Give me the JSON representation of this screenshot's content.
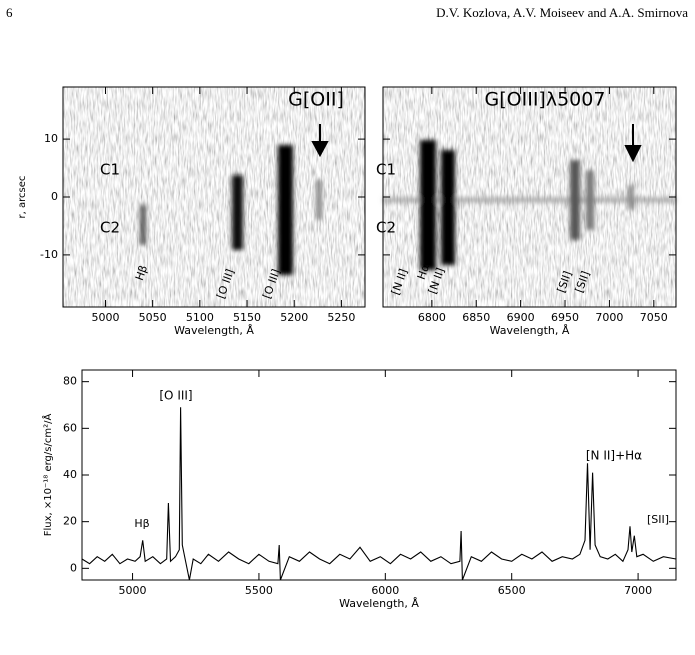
{
  "header": {
    "page_number": "6",
    "authors": "D.V. Kozlova, A.V. Moiseev and A.A. Smirnova"
  },
  "chart_data": [
    {
      "type": "image2d",
      "xlabel": "Wavelength, Å",
      "ylabel": "r, arcsec",
      "xlim": [
        4955,
        5275
      ],
      "xticks": [
        5000,
        5050,
        5100,
        5150,
        5200,
        5250
      ],
      "ylim": [
        -19,
        19
      ],
      "yticks": [
        -10,
        0,
        10
      ],
      "labels": [
        "C1",
        "C2",
        "G[OII]",
        "Hβ",
        "[O III]",
        "[O III]"
      ]
    },
    {
      "type": "image2d",
      "xlabel": "Wavelength, Å",
      "xlim": [
        6745,
        7075
      ],
      "xticks": [
        6800,
        6850,
        6900,
        6950,
        7000,
        7050
      ],
      "ylim": [
        -19,
        19
      ],
      "yticks": [
        -10,
        0,
        10
      ],
      "labels": [
        "C1",
        "C2",
        "G[OIII]λ5007",
        "[N II]",
        "Hα",
        "[N II]",
        "[SII]",
        "[SII]"
      ]
    },
    {
      "type": "line",
      "xlabel": "Wavelength, Å",
      "ylabel": "Flux, ×10⁻¹⁸ erg/s/cm²/Å",
      "color": "#000000",
      "xlim": [
        4800,
        7150
      ],
      "xticks": [
        5000,
        5500,
        6000,
        6500,
        7000
      ],
      "ylim": [
        -5,
        85
      ],
      "yticks": [
        0,
        20,
        40,
        60,
        80
      ],
      "annotations": [
        "Hβ",
        "[O III]",
        "[N II]+Hα",
        "[SII]"
      ],
      "x": [
        4800,
        4830,
        4860,
        4890,
        4920,
        4950,
        4980,
        5010,
        5030,
        5040,
        5050,
        5080,
        5110,
        5135,
        5142,
        5150,
        5170,
        5185,
        5190,
        5197,
        5210,
        5225,
        5240,
        5270,
        5300,
        5340,
        5380,
        5420,
        5460,
        5500,
        5540,
        5575,
        5580,
        5585,
        5620,
        5660,
        5700,
        5740,
        5780,
        5820,
        5860,
        5900,
        5940,
        5980,
        6020,
        6060,
        6100,
        6140,
        6180,
        6220,
        6260,
        6295,
        6300,
        6305,
        6340,
        6380,
        6420,
        6460,
        6500,
        6540,
        6580,
        6620,
        6660,
        6700,
        6740,
        6770,
        6790,
        6800,
        6810,
        6820,
        6830,
        6850,
        6880,
        6910,
        6940,
        6960,
        6968,
        6975,
        6985,
        6995,
        7020,
        7060,
        7100,
        7150
      ],
      "values": [
        4,
        2,
        5,
        3,
        6,
        2,
        4,
        3,
        5,
        12,
        3,
        5,
        2,
        4,
        28,
        3,
        5,
        8,
        69,
        10,
        3,
        -5,
        4,
        2,
        6,
        3,
        7,
        4,
        2,
        6,
        3,
        2,
        10,
        -5,
        5,
        3,
        7,
        4,
        2,
        6,
        4,
        9,
        3,
        5,
        2,
        6,
        4,
        7,
        3,
        5,
        2,
        3,
        16,
        -5,
        5,
        3,
        7,
        4,
        3,
        6,
        4,
        7,
        3,
        5,
        4,
        6,
        12,
        45,
        8,
        41,
        10,
        5,
        4,
        6,
        3,
        8,
        18,
        7,
        14,
        5,
        6,
        3,
        5,
        4
      ]
    }
  ]
}
